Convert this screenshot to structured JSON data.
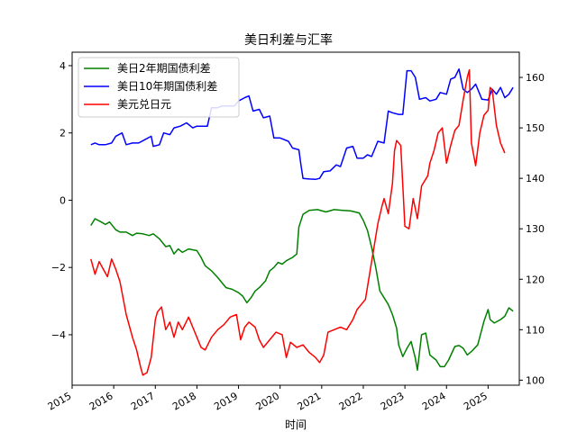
{
  "chart_data": {
    "type": "line",
    "title": "美日利差与汇率",
    "xlabel": "时间",
    "ylabel_left": "",
    "ylabel_right": "",
    "xlim": [
      2015.0,
      2025.75
    ],
    "ylim_left": [
      -5.5,
      4.4
    ],
    "ylim_right": [
      99,
      165
    ],
    "x_ticks": [
      2015,
      2016,
      2017,
      2018,
      2019,
      2020,
      2021,
      2022,
      2023,
      2024,
      2025
    ],
    "x_tick_labels": [
      "2015",
      "2016",
      "2017",
      "2018",
      "2019",
      "2020",
      "2021",
      "2022",
      "2023",
      "2024",
      "2025"
    ],
    "y_ticks_left": [
      -4,
      -2,
      0,
      2,
      4
    ],
    "y_tick_labels_left": [
      "−4",
      "−2",
      "0",
      "2",
      "4"
    ],
    "y_ticks_right": [
      100,
      110,
      120,
      130,
      140,
      150,
      160
    ],
    "y_tick_labels_right": [
      "100",
      "110",
      "120",
      "130",
      "140",
      "150",
      "160"
    ],
    "grid": false,
    "legend_position": "top-left",
    "series": [
      {
        "name": "美日2年期国债利差",
        "color": "#008000",
        "axis": "left",
        "points": [
          [
            2015.45,
            -0.75
          ],
          [
            2015.55,
            -0.55
          ],
          [
            2015.7,
            -0.65
          ],
          [
            2015.8,
            -0.72
          ],
          [
            2015.9,
            -0.65
          ],
          [
            2016.05,
            -0.88
          ],
          [
            2016.15,
            -0.95
          ],
          [
            2016.3,
            -0.95
          ],
          [
            2016.45,
            -1.05
          ],
          [
            2016.55,
            -0.98
          ],
          [
            2016.7,
            -1.0
          ],
          [
            2016.85,
            -1.05
          ],
          [
            2016.95,
            -1.0
          ],
          [
            2017.1,
            -1.15
          ],
          [
            2017.25,
            -1.38
          ],
          [
            2017.35,
            -1.35
          ],
          [
            2017.45,
            -1.6
          ],
          [
            2017.55,
            -1.45
          ],
          [
            2017.65,
            -1.55
          ],
          [
            2017.8,
            -1.45
          ],
          [
            2018.0,
            -1.5
          ],
          [
            2018.1,
            -1.7
          ],
          [
            2018.2,
            -1.95
          ],
          [
            2018.35,
            -2.1
          ],
          [
            2018.5,
            -2.3
          ],
          [
            2018.6,
            -2.45
          ],
          [
            2018.7,
            -2.6
          ],
          [
            2018.85,
            -2.65
          ],
          [
            2019.0,
            -2.75
          ],
          [
            2019.1,
            -2.85
          ],
          [
            2019.2,
            -3.05
          ],
          [
            2019.3,
            -2.9
          ],
          [
            2019.4,
            -2.7
          ],
          [
            2019.5,
            -2.6
          ],
          [
            2019.65,
            -2.4
          ],
          [
            2019.75,
            -2.1
          ],
          [
            2019.85,
            -2.0
          ],
          [
            2019.95,
            -1.85
          ],
          [
            2020.05,
            -1.9
          ],
          [
            2020.15,
            -1.8
          ],
          [
            2020.3,
            -1.7
          ],
          [
            2020.4,
            -1.6
          ],
          [
            2020.45,
            -0.8
          ],
          [
            2020.55,
            -0.42
          ],
          [
            2020.7,
            -0.3
          ],
          [
            2020.9,
            -0.28
          ],
          [
            2021.1,
            -0.35
          ],
          [
            2021.3,
            -0.28
          ],
          [
            2021.5,
            -0.3
          ],
          [
            2021.7,
            -0.32
          ],
          [
            2021.9,
            -0.38
          ],
          [
            2022.0,
            -0.6
          ],
          [
            2022.1,
            -0.9
          ],
          [
            2022.2,
            -1.4
          ],
          [
            2022.3,
            -2.0
          ],
          [
            2022.4,
            -2.7
          ],
          [
            2022.5,
            -2.9
          ],
          [
            2022.6,
            -3.1
          ],
          [
            2022.7,
            -3.4
          ],
          [
            2022.8,
            -3.8
          ],
          [
            2022.85,
            -4.3
          ],
          [
            2022.95,
            -4.65
          ],
          [
            2023.05,
            -4.4
          ],
          [
            2023.15,
            -4.2
          ],
          [
            2023.25,
            -4.7
          ],
          [
            2023.3,
            -5.05
          ],
          [
            2023.4,
            -4.0
          ],
          [
            2023.5,
            -3.95
          ],
          [
            2023.6,
            -4.6
          ],
          [
            2023.75,
            -4.75
          ],
          [
            2023.85,
            -4.95
          ],
          [
            2023.95,
            -4.95
          ],
          [
            2024.05,
            -4.75
          ],
          [
            2024.2,
            -4.35
          ],
          [
            2024.3,
            -4.32
          ],
          [
            2024.4,
            -4.4
          ],
          [
            2024.5,
            -4.6
          ],
          [
            2024.6,
            -4.5
          ],
          [
            2024.75,
            -4.3
          ],
          [
            2024.9,
            -3.6
          ],
          [
            2025.0,
            -3.25
          ],
          [
            2025.05,
            -3.55
          ],
          [
            2025.15,
            -3.65
          ],
          [
            2025.3,
            -3.55
          ],
          [
            2025.4,
            -3.45
          ],
          [
            2025.5,
            -3.2
          ],
          [
            2025.6,
            -3.3
          ]
        ]
      },
      {
        "name": "美日10年期国债利差",
        "color": "#0000ff",
        "axis": "left",
        "points": [
          [
            2015.45,
            1.65
          ],
          [
            2015.55,
            1.7
          ],
          [
            2015.65,
            1.65
          ],
          [
            2015.8,
            1.65
          ],
          [
            2015.95,
            1.7
          ],
          [
            2016.05,
            1.9
          ],
          [
            2016.2,
            2.0
          ],
          [
            2016.3,
            1.65
          ],
          [
            2016.45,
            1.7
          ],
          [
            2016.6,
            1.7
          ],
          [
            2016.75,
            1.8
          ],
          [
            2016.9,
            1.9
          ],
          [
            2016.95,
            1.6
          ],
          [
            2017.1,
            1.65
          ],
          [
            2017.2,
            2.0
          ],
          [
            2017.35,
            1.95
          ],
          [
            2017.45,
            2.15
          ],
          [
            2017.6,
            2.2
          ],
          [
            2017.75,
            2.3
          ],
          [
            2017.9,
            2.15
          ],
          [
            2018.0,
            2.2
          ],
          [
            2018.15,
            2.2
          ],
          [
            2018.25,
            2.2
          ],
          [
            2018.35,
            2.75
          ],
          [
            2018.5,
            2.75
          ],
          [
            2018.6,
            2.8
          ],
          [
            2018.75,
            2.8
          ],
          [
            2018.9,
            2.8
          ],
          [
            2019.0,
            2.95
          ],
          [
            2019.15,
            3.05
          ],
          [
            2019.25,
            3.1
          ],
          [
            2019.35,
            2.65
          ],
          [
            2019.5,
            2.7
          ],
          [
            2019.6,
            2.45
          ],
          [
            2019.75,
            2.5
          ],
          [
            2019.85,
            1.85
          ],
          [
            2020.0,
            1.85
          ],
          [
            2020.2,
            1.75
          ],
          [
            2020.3,
            1.55
          ],
          [
            2020.45,
            1.5
          ],
          [
            2020.5,
            1.05
          ],
          [
            2020.55,
            0.65
          ],
          [
            2020.7,
            0.63
          ],
          [
            2020.85,
            0.62
          ],
          [
            2020.95,
            0.65
          ],
          [
            2021.05,
            0.85
          ],
          [
            2021.2,
            0.87
          ],
          [
            2021.35,
            1.05
          ],
          [
            2021.45,
            1.0
          ],
          [
            2021.6,
            1.55
          ],
          [
            2021.75,
            1.6
          ],
          [
            2021.85,
            1.25
          ],
          [
            2022.0,
            1.25
          ],
          [
            2022.1,
            1.35
          ],
          [
            2022.2,
            1.3
          ],
          [
            2022.35,
            1.75
          ],
          [
            2022.5,
            1.7
          ],
          [
            2022.6,
            2.65
          ],
          [
            2022.7,
            2.6
          ],
          [
            2022.85,
            2.55
          ],
          [
            2022.95,
            2.55
          ],
          [
            2023.05,
            3.85
          ],
          [
            2023.15,
            3.85
          ],
          [
            2023.25,
            3.65
          ],
          [
            2023.35,
            3.0
          ],
          [
            2023.5,
            3.05
          ],
          [
            2023.6,
            2.95
          ],
          [
            2023.75,
            3.0
          ],
          [
            2023.85,
            3.2
          ],
          [
            2024.0,
            3.15
          ],
          [
            2024.1,
            3.6
          ],
          [
            2024.2,
            3.65
          ],
          [
            2024.3,
            3.9
          ],
          [
            2024.4,
            3.3
          ],
          [
            2024.5,
            3.2
          ],
          [
            2024.6,
            3.3
          ],
          [
            2024.7,
            3.45
          ],
          [
            2024.85,
            3.0
          ],
          [
            2025.0,
            2.98
          ],
          [
            2025.1,
            3.3
          ],
          [
            2025.2,
            3.15
          ],
          [
            2025.3,
            3.35
          ],
          [
            2025.4,
            3.05
          ],
          [
            2025.5,
            3.15
          ],
          [
            2025.6,
            3.35
          ]
        ]
      },
      {
        "name": "美元兑日元",
        "color": "#ff0000",
        "axis": "right",
        "points": [
          [
            2015.45,
            124.0
          ],
          [
            2015.55,
            121.0
          ],
          [
            2015.65,
            123.5
          ],
          [
            2015.75,
            122.0
          ],
          [
            2015.85,
            120.5
          ],
          [
            2015.95,
            124.0
          ],
          [
            2016.05,
            122.0
          ],
          [
            2016.15,
            119.5
          ],
          [
            2016.3,
            113.0
          ],
          [
            2016.45,
            108.5
          ],
          [
            2016.55,
            106.0
          ],
          [
            2016.65,
            102.5
          ],
          [
            2016.7,
            101.0
          ],
          [
            2016.8,
            101.5
          ],
          [
            2016.9,
            104.5
          ],
          [
            2017.0,
            112.0
          ],
          [
            2017.05,
            113.5
          ],
          [
            2017.15,
            114.5
          ],
          [
            2017.25,
            110.0
          ],
          [
            2017.35,
            111.5
          ],
          [
            2017.45,
            108.5
          ],
          [
            2017.55,
            111.5
          ],
          [
            2017.65,
            110.0
          ],
          [
            2017.8,
            112.5
          ],
          [
            2017.95,
            109.5
          ],
          [
            2018.1,
            106.5
          ],
          [
            2018.2,
            106.0
          ],
          [
            2018.35,
            108.5
          ],
          [
            2018.5,
            110.0
          ],
          [
            2018.65,
            111.0
          ],
          [
            2018.8,
            112.5
          ],
          [
            2018.95,
            113.0
          ],
          [
            2019.05,
            108.0
          ],
          [
            2019.15,
            110.5
          ],
          [
            2019.25,
            111.5
          ],
          [
            2019.4,
            110.5
          ],
          [
            2019.5,
            108.0
          ],
          [
            2019.6,
            106.5
          ],
          [
            2019.75,
            108.0
          ],
          [
            2019.9,
            109.5
          ],
          [
            2020.05,
            109.0
          ],
          [
            2020.15,
            104.5
          ],
          [
            2020.25,
            107.5
          ],
          [
            2020.4,
            106.5
          ],
          [
            2020.55,
            107.0
          ],
          [
            2020.7,
            105.5
          ],
          [
            2020.85,
            104.5
          ],
          [
            2020.95,
            103.5
          ],
          [
            2021.05,
            105.0
          ],
          [
            2021.15,
            109.5
          ],
          [
            2021.3,
            110.0
          ],
          [
            2021.45,
            110.5
          ],
          [
            2021.6,
            110.0
          ],
          [
            2021.75,
            112.0
          ],
          [
            2021.85,
            114.0
          ],
          [
            2021.95,
            115.0
          ],
          [
            2022.05,
            116.0
          ],
          [
            2022.15,
            121.0
          ],
          [
            2022.25,
            126.0
          ],
          [
            2022.35,
            131.0
          ],
          [
            2022.45,
            134.5
          ],
          [
            2022.5,
            136.0
          ],
          [
            2022.6,
            133.0
          ],
          [
            2022.7,
            139.0
          ],
          [
            2022.75,
            145.5
          ],
          [
            2022.8,
            147.5
          ],
          [
            2022.9,
            146.5
          ],
          [
            2023.0,
            130.5
          ],
          [
            2023.1,
            130.0
          ],
          [
            2023.2,
            136.0
          ],
          [
            2023.3,
            132.0
          ],
          [
            2023.4,
            138.5
          ],
          [
            2023.55,
            140.5
          ],
          [
            2023.6,
            143.0
          ],
          [
            2023.7,
            145.5
          ],
          [
            2023.8,
            149.0
          ],
          [
            2023.9,
            150.0
          ],
          [
            2024.0,
            143.0
          ],
          [
            2024.1,
            146.5
          ],
          [
            2024.2,
            149.5
          ],
          [
            2024.3,
            150.5
          ],
          [
            2024.4,
            155.5
          ],
          [
            2024.5,
            160.0
          ],
          [
            2024.55,
            161.5
          ],
          [
            2024.6,
            147.0
          ],
          [
            2024.7,
            142.5
          ],
          [
            2024.8,
            149.0
          ],
          [
            2024.9,
            152.5
          ],
          [
            2025.0,
            153.5
          ],
          [
            2025.05,
            158.0
          ],
          [
            2025.1,
            157.5
          ],
          [
            2025.2,
            150.5
          ],
          [
            2025.3,
            147.0
          ],
          [
            2025.4,
            145.0
          ]
        ]
      }
    ]
  }
}
